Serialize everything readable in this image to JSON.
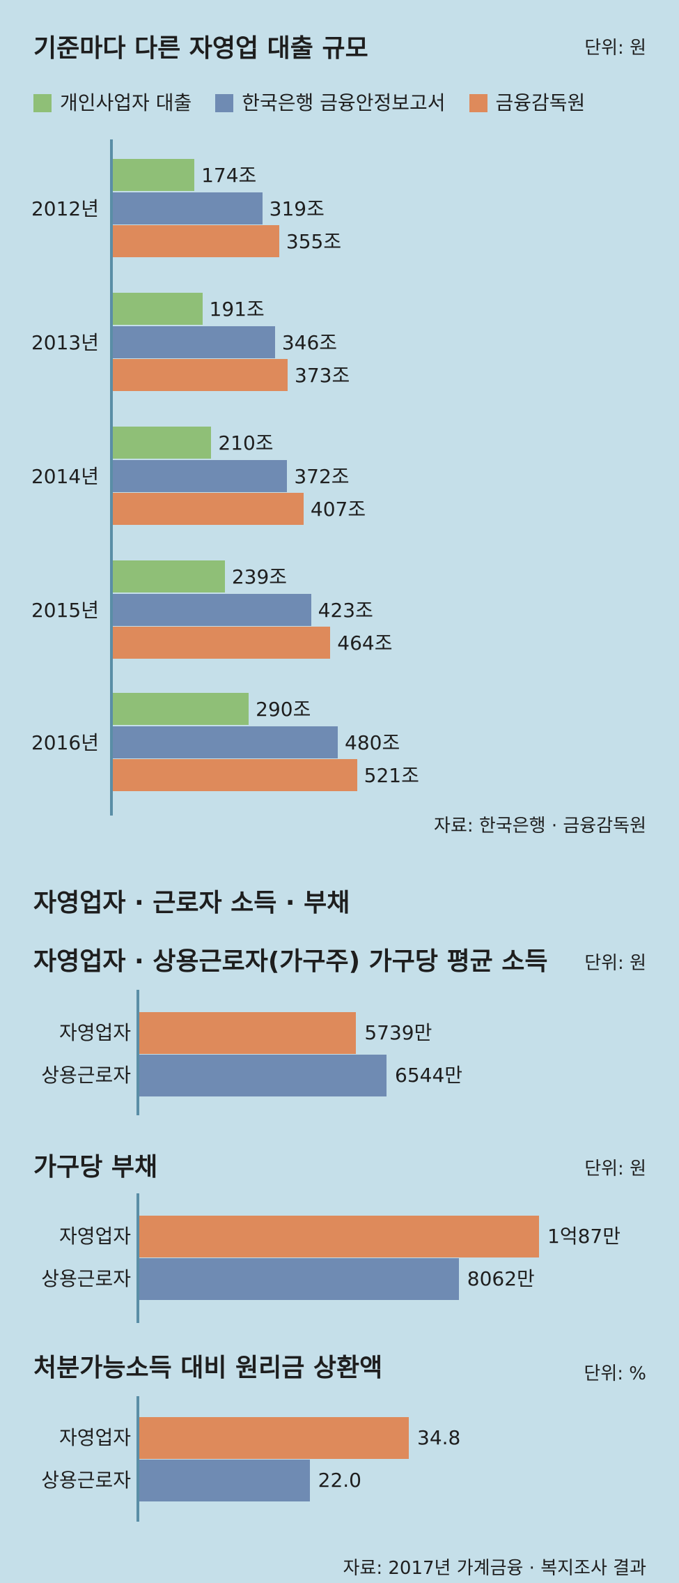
{
  "colors": {
    "green": "#8fbf77",
    "blue": "#6f8bb3",
    "orange": "#de8a5b",
    "axis": "#5a8ea6",
    "background": "#c5dfe9"
  },
  "chart1": {
    "title": "기준마다 다른 자영업 대출 규모",
    "unit": "단위: 원",
    "source": "자료: 한국은행 · 금융감독원"
  },
  "section2_title": "자영업자 · 근로자 소득 · 부채",
  "chart2": {
    "title": "자영업자 · 상용근로자(가구주) 가구당 평균 소득",
    "unit": "단위: 원"
  },
  "chart3": {
    "title": "가구당 부채",
    "unit": "단위: 원"
  },
  "chart4": {
    "title": "처분가능소득 대비 원리금 상환액",
    "unit": "단위: %",
    "source": "자료: 2017년 가계금융 · 복지조사 결과"
  },
  "chart_data": [
    {
      "type": "bar",
      "orientation": "horizontal",
      "title": "기준마다 다른 자영업 대출 규모",
      "unit": "단위: 원",
      "categories": [
        "2012년",
        "2013년",
        "2014년",
        "2015년",
        "2016년"
      ],
      "series": [
        {
          "name": "개인사업자 대출",
          "color": "#8fbf77",
          "values": [
            174,
            191,
            210,
            239,
            290
          ],
          "labels": [
            "174조",
            "191조",
            "210조",
            "239조",
            "290조"
          ]
        },
        {
          "name": "한국은행 금융안정보고서",
          "color": "#6f8bb3",
          "values": [
            319,
            346,
            372,
            423,
            480
          ],
          "labels": [
            "319조",
            "346조",
            "372조",
            "423조",
            "480조"
          ]
        },
        {
          "name": "금융감독원",
          "color": "#de8a5b",
          "values": [
            355,
            373,
            407,
            464,
            521
          ],
          "labels": [
            "355조",
            "373조",
            "407조",
            "464조",
            "521조"
          ]
        }
      ],
      "legend": "top",
      "source": "자료: 한국은행 · 금융감독원"
    },
    {
      "type": "bar",
      "orientation": "horizontal",
      "title": "자영업자 · 상용근로자(가구주) 가구당 평균 소득",
      "unit": "단위: 원",
      "categories": [
        "자영업자",
        "상용근로자"
      ],
      "values": [
        5739,
        6544
      ],
      "labels": [
        "5739만",
        "6544만"
      ],
      "colors": [
        "#de8a5b",
        "#6f8bb3"
      ]
    },
    {
      "type": "bar",
      "orientation": "horizontal",
      "title": "가구당 부채",
      "unit": "단위: 원",
      "categories": [
        "자영업자",
        "상용근로자"
      ],
      "values": [
        10087,
        8062
      ],
      "labels": [
        "1억87만",
        "8062만"
      ],
      "colors": [
        "#de8a5b",
        "#6f8bb3"
      ]
    },
    {
      "type": "bar",
      "orientation": "horizontal",
      "title": "처분가능소득 대비 원리금 상환액",
      "unit": "단위: %",
      "categories": [
        "자영업자",
        "상용근로자"
      ],
      "values": [
        34.8,
        22.0
      ],
      "labels": [
        "34.8",
        "22.0"
      ],
      "colors": [
        "#de8a5b",
        "#6f8bb3"
      ],
      "source": "자료: 2017년 가계금융 · 복지조사 결과"
    }
  ]
}
